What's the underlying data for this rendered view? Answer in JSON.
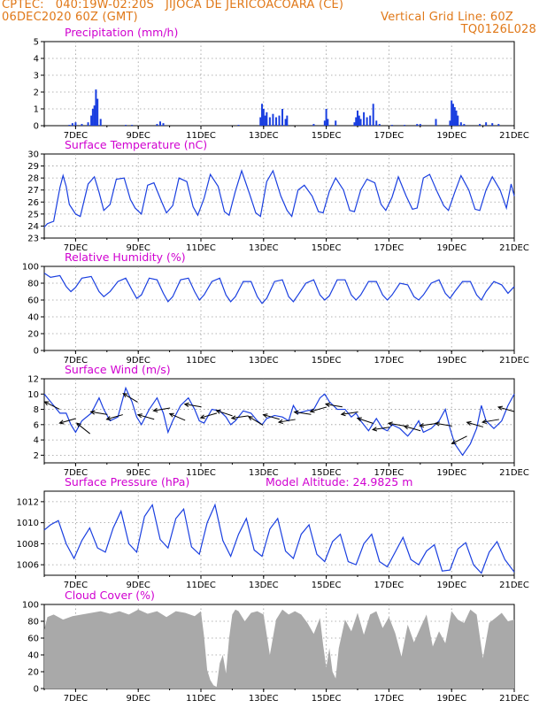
{
  "header": {
    "left1": "CPTEC:   040:19W-02:20S   JIJOCA DE JERICOACOARA (CE)",
    "left2": "06DEC2020 60Z (GMT)",
    "right2": "Vertical Grid Line: 60Z",
    "right3": "TQ0126L028"
  },
  "colors": {
    "header": "#e07818",
    "title": "#d000d0",
    "series": "#1a3fe0",
    "cloud": "#a9a9a9",
    "grid": "#9a9a9a"
  },
  "x_axis": {
    "tick_labels": [
      "7DEC",
      "9DEC",
      "11DEC",
      "13DEC",
      "15DEC",
      "17DEC",
      "19DEC",
      "21DEC"
    ],
    "tick_days": [
      7,
      9,
      11,
      13,
      15,
      17,
      19,
      21
    ],
    "range_days": [
      6,
      21
    ]
  },
  "panels": {
    "precip": {
      "title": "Precipitation (mm/h)",
      "yticks": [
        "0",
        "1",
        "2",
        "3",
        "4",
        "5"
      ]
    },
    "temp": {
      "title": "Surface Temperature (nC)",
      "yticks": [
        "23",
        "24",
        "25",
        "26",
        "27",
        "28",
        "29",
        "30"
      ]
    },
    "rh": {
      "title": "Relative Humidity (%)",
      "yticks": [
        "0",
        "20",
        "40",
        "60",
        "80",
        "100"
      ]
    },
    "wind": {
      "title": "Surface Wind (m/s)",
      "yticks": [
        "2",
        "4",
        "6",
        "8",
        "10",
        "12"
      ]
    },
    "press": {
      "title": "Surface Pressure (hPa)",
      "subtitle": "Model Altitude: 24.9825 m",
      "yticks": [
        "1006",
        "1008",
        "1010",
        "1012"
      ]
    },
    "cloud": {
      "title": "Cloud Cover (%)",
      "yticks": [
        "0",
        "20",
        "40",
        "60",
        "80",
        "100"
      ]
    }
  },
  "chart_data": [
    {
      "type": "bar",
      "name": "precipitation",
      "ylim": [
        0,
        5
      ],
      "x_days": [
        6.8,
        6.9,
        7.0,
        7.2,
        7.4,
        7.5,
        7.55,
        7.6,
        7.65,
        7.7,
        7.8,
        8.6,
        8.8,
        9.6,
        9.7,
        9.8,
        12.2,
        12.9,
        12.95,
        13.0,
        13.05,
        13.1,
        13.2,
        13.3,
        13.4,
        13.5,
        13.6,
        13.7,
        13.75,
        14.6,
        14.95,
        15.0,
        15.05,
        15.3,
        15.9,
        15.95,
        16.0,
        16.05,
        16.1,
        16.2,
        16.3,
        16.4,
        16.5,
        16.6,
        16.7,
        17.1,
        17.5,
        17.9,
        18.0,
        18.5,
        18.95,
        19.0,
        19.05,
        19.1,
        19.15,
        19.2,
        19.3,
        19.4,
        19.9,
        20.1,
        20.3,
        20.5
      ],
      "values": [
        0.05,
        0.15,
        0.2,
        0.1,
        0.2,
        0.6,
        1.0,
        1.2,
        2.15,
        1.6,
        0.4,
        0.05,
        0.05,
        0.1,
        0.25,
        0.15,
        0.05,
        0.5,
        1.3,
        1.0,
        0.6,
        0.8,
        0.5,
        0.7,
        0.5,
        0.6,
        1.0,
        0.4,
        0.6,
        0.1,
        0.3,
        1.0,
        0.4,
        0.3,
        0.2,
        0.5,
        0.9,
        0.6,
        0.4,
        0.8,
        0.5,
        0.6,
        1.3,
        0.3,
        0.1,
        0.05,
        0.05,
        0.1,
        0.1,
        0.4,
        0.3,
        1.5,
        1.3,
        1.1,
        0.9,
        0.6,
        0.2,
        0.1,
        0.1,
        0.2,
        0.15,
        0.1
      ]
    },
    {
      "type": "line",
      "name": "temperature",
      "ylim": [
        23,
        30
      ],
      "x_days": [
        6.0,
        6.1,
        6.3,
        6.5,
        6.6,
        6.7,
        6.8,
        7.0,
        7.15,
        7.4,
        7.6,
        7.75,
        7.9,
        8.1,
        8.3,
        8.55,
        8.75,
        8.9,
        9.1,
        9.3,
        9.5,
        9.75,
        9.9,
        10.1,
        10.3,
        10.55,
        10.75,
        10.9,
        11.1,
        11.3,
        11.55,
        11.75,
        11.9,
        12.1,
        12.3,
        12.55,
        12.75,
        12.9,
        13.1,
        13.3,
        13.55,
        13.75,
        13.9,
        14.1,
        14.3,
        14.55,
        14.75,
        14.9,
        15.1,
        15.3,
        15.55,
        15.75,
        15.9,
        16.1,
        16.3,
        16.55,
        16.75,
        16.9,
        17.1,
        17.3,
        17.55,
        17.75,
        17.9,
        18.1,
        18.3,
        18.55,
        18.75,
        18.9,
        19.1,
        19.3,
        19.55,
        19.75,
        19.9,
        20.1,
        20.3,
        20.55,
        20.75,
        20.9,
        21.0
      ],
      "values": [
        23.9,
        24.2,
        24.4,
        27.2,
        28.2,
        27.3,
        25.8,
        25.0,
        24.8,
        27.5,
        28.1,
        26.8,
        25.3,
        25.8,
        27.9,
        28.0,
        26.2,
        25.5,
        25.0,
        27.4,
        27.6,
        26.0,
        25.1,
        25.7,
        28.0,
        27.7,
        25.6,
        24.9,
        26.3,
        28.3,
        27.3,
        25.2,
        24.9,
        26.9,
        28.6,
        26.7,
        25.1,
        24.8,
        27.7,
        28.6,
        26.5,
        25.3,
        24.8,
        27.0,
        27.4,
        26.5,
        25.2,
        25.1,
        26.9,
        28.0,
        27.0,
        25.3,
        25.2,
        27.0,
        27.9,
        27.6,
        25.8,
        25.3,
        26.4,
        28.1,
        26.5,
        25.4,
        25.5,
        28.0,
        28.3,
        26.8,
        25.7,
        25.3,
        26.8,
        28.2,
        27.0,
        25.4,
        25.3,
        27.0,
        28.1,
        27.0,
        25.5,
        27.5,
        26.5
      ]
    },
    {
      "type": "line",
      "name": "relative_humidity",
      "ylim": [
        0,
        100
      ],
      "x_days": [
        6.0,
        6.2,
        6.5,
        6.7,
        6.85,
        7.0,
        7.2,
        7.5,
        7.75,
        7.9,
        8.1,
        8.35,
        8.6,
        8.8,
        8.95,
        9.1,
        9.35,
        9.6,
        9.8,
        9.95,
        10.1,
        10.35,
        10.6,
        10.8,
        10.95,
        11.1,
        11.35,
        11.6,
        11.8,
        11.95,
        12.1,
        12.35,
        12.6,
        12.8,
        12.95,
        13.1,
        13.35,
        13.6,
        13.8,
        13.95,
        14.1,
        14.35,
        14.6,
        14.8,
        14.95,
        15.1,
        15.35,
        15.6,
        15.8,
        15.95,
        16.1,
        16.35,
        16.6,
        16.8,
        16.95,
        17.1,
        17.35,
        17.6,
        17.8,
        17.95,
        18.1,
        18.35,
        18.6,
        18.8,
        18.95,
        19.1,
        19.35,
        19.6,
        19.8,
        19.95,
        20.1,
        20.35,
        20.6,
        20.8,
        21.0
      ],
      "values": [
        92,
        87,
        89,
        76,
        70,
        75,
        86,
        88,
        70,
        64,
        70,
        82,
        86,
        72,
        62,
        66,
        86,
        84,
        68,
        58,
        64,
        84,
        86,
        70,
        60,
        66,
        82,
        86,
        66,
        58,
        64,
        82,
        82,
        64,
        56,
        62,
        82,
        84,
        64,
        58,
        66,
        80,
        84,
        66,
        60,
        65,
        84,
        84,
        66,
        60,
        66,
        82,
        82,
        66,
        60,
        66,
        80,
        78,
        64,
        60,
        66,
        80,
        84,
        68,
        62,
        70,
        82,
        82,
        66,
        60,
        70,
        82,
        78,
        68,
        76
      ]
    },
    {
      "type": "line",
      "name": "wind_speed",
      "ylim": [
        1,
        12
      ],
      "x_days": [
        6.0,
        6.2,
        6.5,
        6.7,
        6.85,
        7.0,
        7.2,
        7.5,
        7.75,
        7.9,
        8.1,
        8.35,
        8.6,
        8.8,
        8.95,
        9.1,
        9.35,
        9.6,
        9.8,
        9.95,
        10.1,
        10.35,
        10.6,
        10.8,
        10.95,
        11.1,
        11.35,
        11.6,
        11.8,
        11.95,
        12.1,
        12.35,
        12.6,
        12.8,
        12.95,
        13.1,
        13.35,
        13.6,
        13.8,
        13.95,
        14.1,
        14.35,
        14.6,
        14.8,
        14.95,
        15.1,
        15.35,
        15.6,
        15.8,
        15.95,
        16.1,
        16.35,
        16.6,
        16.8,
        16.95,
        17.1,
        17.35,
        17.6,
        17.8,
        17.95,
        18.1,
        18.35,
        18.6,
        18.8,
        18.95,
        19.1,
        19.35,
        19.6,
        19.8,
        19.95,
        20.1,
        20.35,
        20.6,
        20.8,
        21.0
      ],
      "values": [
        10.0,
        9.0,
        7.5,
        7.5,
        6.0,
        5.0,
        6.5,
        7.5,
        9.5,
        8.0,
        6.5,
        7.0,
        10.8,
        9.0,
        7.0,
        6.0,
        8.0,
        9.5,
        7.5,
        5.0,
        6.5,
        8.5,
        9.5,
        8.0,
        6.5,
        6.2,
        8.0,
        7.8,
        7.0,
        6.0,
        6.5,
        7.8,
        7.5,
        6.5,
        6.0,
        6.8,
        7.2,
        7.0,
        6.5,
        8.5,
        7.5,
        7.8,
        8.0,
        9.5,
        10.0,
        9.0,
        8.0,
        8.0,
        7.0,
        7.5,
        6.5,
        5.2,
        6.8,
        5.5,
        5.2,
        6.0,
        5.5,
        4.5,
        5.5,
        6.5,
        5.0,
        5.5,
        6.5,
        8.0,
        5.5,
        3.5,
        2.0,
        3.5,
        5.5,
        8.5,
        6.5,
        5.5,
        6.5,
        8.5,
        10.0
      ]
    },
    {
      "type": "line",
      "name": "surface_pressure",
      "ylim": [
        1005,
        1013
      ],
      "x_days": [
        6.0,
        6.2,
        6.45,
        6.7,
        6.95,
        7.2,
        7.45,
        7.7,
        7.95,
        8.2,
        8.45,
        8.7,
        8.95,
        9.2,
        9.45,
        9.7,
        9.95,
        10.2,
        10.45,
        10.7,
        10.95,
        11.2,
        11.45,
        11.7,
        11.95,
        12.2,
        12.45,
        12.7,
        12.95,
        13.2,
        13.45,
        13.7,
        13.95,
        14.2,
        14.45,
        14.7,
        14.95,
        15.2,
        15.45,
        15.7,
        15.95,
        16.2,
        16.45,
        16.7,
        16.95,
        17.2,
        17.45,
        17.7,
        17.95,
        18.2,
        18.45,
        18.7,
        18.95,
        19.2,
        19.45,
        19.7,
        19.95,
        20.2,
        20.45,
        20.7,
        21.0
      ],
      "values": [
        1009.3,
        1009.8,
        1010.2,
        1008.0,
        1006.6,
        1008.3,
        1009.5,
        1007.6,
        1007.2,
        1009.5,
        1011.1,
        1008.0,
        1007.2,
        1010.6,
        1011.7,
        1008.4,
        1007.6,
        1010.4,
        1011.3,
        1007.7,
        1007.0,
        1010.0,
        1011.7,
        1008.3,
        1006.8,
        1008.9,
        1010.4,
        1007.4,
        1006.8,
        1009.4,
        1010.4,
        1007.3,
        1006.6,
        1008.9,
        1009.8,
        1007.0,
        1006.3,
        1008.2,
        1008.9,
        1006.3,
        1006.0,
        1008.0,
        1008.9,
        1006.3,
        1005.8,
        1007.2,
        1008.6,
        1006.5,
        1006.0,
        1007.3,
        1007.9,
        1005.4,
        1005.5,
        1007.5,
        1008.1,
        1006.0,
        1005.2,
        1007.2,
        1008.2,
        1006.5,
        1005.3
      ]
    },
    {
      "type": "area",
      "name": "cloud_cover",
      "ylim": [
        0,
        100
      ],
      "x_days": [
        6.0,
        6.1,
        6.3,
        6.6,
        6.9,
        7.2,
        7.5,
        7.8,
        8.1,
        8.4,
        8.7,
        9.0,
        9.3,
        9.6,
        9.9,
        10.2,
        10.5,
        10.8,
        11.0,
        11.1,
        11.2,
        11.3,
        11.4,
        11.5,
        11.6,
        11.7,
        11.8,
        11.9,
        12.0,
        12.1,
        12.2,
        12.4,
        12.6,
        12.8,
        13.0,
        13.2,
        13.4,
        13.6,
        13.8,
        14.0,
        14.2,
        14.4,
        14.6,
        14.8,
        14.9,
        15.0,
        15.1,
        15.2,
        15.3,
        15.4,
        15.6,
        15.8,
        16.0,
        16.2,
        16.4,
        16.6,
        16.8,
        17.0,
        17.2,
        17.4,
        17.6,
        17.8,
        18.0,
        18.2,
        18.4,
        18.6,
        18.8,
        19.0,
        19.2,
        19.4,
        19.6,
        19.8,
        20.0,
        20.2,
        20.4,
        20.6,
        20.8,
        21.0
      ],
      "values": [
        70,
        85,
        88,
        82,
        86,
        88,
        90,
        92,
        89,
        92,
        88,
        94,
        89,
        92,
        85,
        92,
        90,
        86,
        92,
        62,
        22,
        10,
        4,
        2,
        30,
        40,
        18,
        60,
        88,
        94,
        92,
        80,
        90,
        92,
        88,
        40,
        82,
        94,
        88,
        92,
        88,
        78,
        65,
        84,
        52,
        25,
        48,
        20,
        12,
        48,
        82,
        68,
        90,
        64,
        88,
        92,
        72,
        85,
        66,
        38,
        76,
        55,
        72,
        88,
        50,
        68,
        54,
        92,
        82,
        78,
        94,
        88,
        36,
        78,
        84,
        90,
        80,
        82
      ]
    }
  ],
  "wind_vectors": {
    "x_days": [
      6.25,
      6.75,
      7.25,
      7.75,
      8.25,
      8.75,
      9.25,
      9.75,
      10.25,
      10.75,
      11.25,
      11.75,
      12.25,
      12.75,
      13.25,
      13.75,
      14.25,
      14.75,
      15.25,
      15.75,
      16.25,
      16.75,
      17.25,
      17.75,
      18.25,
      18.75,
      19.25,
      19.75,
      20.25,
      20.75
    ],
    "speed": [
      8.5,
      6.5,
      5.5,
      7.5,
      7.0,
      9.5,
      7.0,
      8.0,
      7.0,
      8.5,
      7.2,
      7.5,
      7.0,
      6.5,
      7.0,
      6.5,
      7.5,
      8.0,
      8.5,
      7.5,
      6.5,
      5.5,
      6.0,
      5.5,
      6.0,
      6.0,
      4.0,
      6.0,
      6.5,
      8.0
    ],
    "u": [
      -6,
      -7,
      -5,
      -6,
      -7,
      -5,
      -7,
      -6,
      -7,
      -6,
      -7,
      -6,
      -7,
      -5,
      -7,
      -6,
      -7,
      -7,
      -6,
      -7,
      -6,
      -7,
      -6,
      -7,
      -7,
      -6,
      -6,
      -7,
      -6,
      -7
    ],
    "v": [
      3,
      -2,
      4,
      1,
      -2,
      3,
      2,
      -1,
      3,
      1,
      -2,
      2,
      -1,
      3,
      2,
      -1,
      1,
      -2,
      1,
      -1,
      2,
      -1,
      1,
      2,
      -1,
      1,
      -3,
      2,
      -1,
      2
    ]
  }
}
